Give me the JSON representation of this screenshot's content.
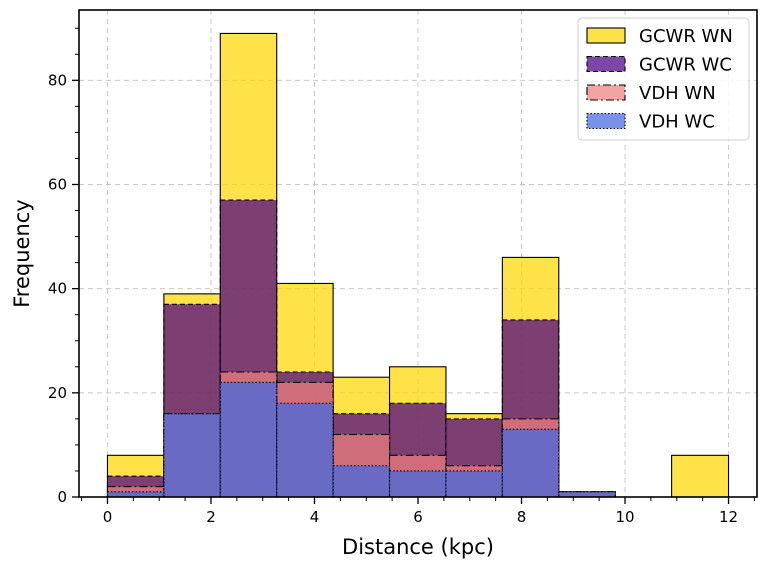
{
  "chart_data": {
    "type": "bar",
    "subtype": "overlaid-histogram",
    "xlabel": "Distance (kpc)",
    "ylabel": "Frequency",
    "xlim": [
      -0.55,
      12.55
    ],
    "ylim": [
      0,
      93.5
    ],
    "xticks": [
      0,
      2,
      4,
      6,
      8,
      10,
      12
    ],
    "yticks": [
      0,
      20,
      40,
      60,
      80
    ],
    "grid": true,
    "legend_position": "top-right",
    "bin_edges": [
      0.0,
      1.09,
      2.18,
      3.27,
      4.36,
      5.45,
      6.54,
      7.63,
      8.72,
      9.81,
      10.9,
      12.0
    ],
    "series": [
      {
        "name": "GCWR WN",
        "color": "#FFD700",
        "alpha": 0.72,
        "linestyle": "solid",
        "values": [
          8,
          39,
          89,
          41,
          23,
          25,
          16,
          46,
          1,
          0,
          8
        ]
      },
      {
        "name": "GCWR WC",
        "color": "#4B0082",
        "alpha": 0.72,
        "linestyle": "dashed",
        "values": [
          4,
          37,
          57,
          24,
          16,
          18,
          15,
          34,
          1,
          0,
          0
        ]
      },
      {
        "name": "VDH WN",
        "color": "#F08080",
        "alpha": 0.72,
        "linestyle": "dashdot",
        "values": [
          2,
          16,
          24,
          22,
          12,
          8,
          6,
          15,
          1,
          0,
          0
        ]
      },
      {
        "name": "VDH WC",
        "color": "#4169E1",
        "alpha": 0.72,
        "linestyle": "dotted",
        "values": [
          1,
          16,
          22,
          18,
          6,
          5,
          5,
          13,
          1,
          0,
          0
        ]
      }
    ]
  }
}
